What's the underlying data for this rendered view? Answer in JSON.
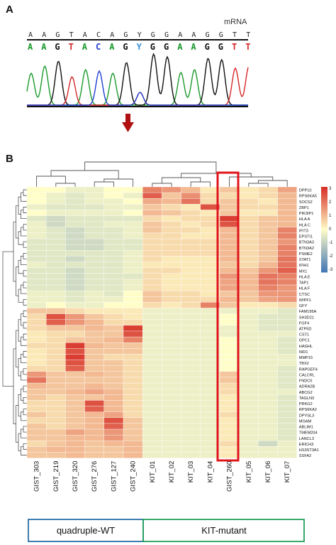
{
  "panelA": {
    "label": "A",
    "mrna_label": "mRNA",
    "sequence_top": [
      "A",
      "A",
      "G",
      "T",
      "A",
      "C",
      "A",
      "G",
      "Y",
      "G",
      "G",
      "A",
      "A",
      "G",
      "G",
      "T",
      "T"
    ],
    "sequence_calls": [
      "A",
      "A",
      "G",
      "T",
      "A",
      "C",
      "A",
      "G",
      "Y",
      "G",
      "G",
      "A",
      "A",
      "G",
      "G",
      "T",
      "T"
    ],
    "base_colors": {
      "A": "#1a9a2c",
      "G": "#111111",
      "T": "#d62728",
      "C": "#1f3fd1",
      "Y": "#3b8fd6"
    },
    "arrow_color": "#b01010",
    "mutation_index": 8
  },
  "panelB": {
    "label": "B",
    "samples": [
      "GIST_303",
      "GIST_219",
      "GIST_320",
      "GIST_276",
      "GIST_127",
      "GIST_240",
      "KIT_01",
      "KIT_02",
      "KIT_03",
      "KIT_04",
      "GIST_260",
      "KIT_05",
      "KIT_06",
      "KIT_07"
    ],
    "highlight_sample": "GIST_260",
    "highlight_color": "#e0141b",
    "genes": [
      "DPP10",
      "RPS6KA5",
      "SOCS2",
      "ZBP1",
      "PIK3IP1",
      "HLA A",
      "HLA C",
      "IFIT3",
      "EPSTI1",
      "BTN3A3",
      "BTN3A2",
      "PSME2",
      "STAT1",
      "IFIH1",
      "MX1",
      "HLA E",
      "TAP1",
      "HLA F",
      "CTSC",
      "WIPF1",
      "GFY",
      "FAM195A",
      "SH3D21",
      "FGF4",
      "ATP5D",
      "CST1",
      "GPC1",
      "HAGHL",
      "NID1",
      "MMP15",
      "TBX2",
      "RAPGEF4",
      "CALCRL",
      "FNDC5",
      "ADRA2B",
      "ABCG2",
      "TAGLN3",
      "PRKG2",
      "RPS6KA2",
      "DPYSL3",
      "MGAM",
      "ABLIM1",
      "TMEM204",
      "LANCL3",
      "ERICH3",
      "HS3ST3A1",
      "SSFA2"
    ],
    "scale_ticks": [
      "3",
      "2",
      "1",
      "0",
      "-1",
      "-2",
      "-3"
    ],
    "groups": [
      {
        "label": "quadruple-WT",
        "color": "#2a6fa8"
      },
      {
        "label": "KIT-mutant",
        "color": "#22a05a"
      }
    ]
  },
  "chart_data": {
    "type": "heatmap",
    "title": "",
    "x": [
      "GIST_303",
      "GIST_219",
      "GIST_320",
      "GIST_276",
      "GIST_127",
      "GIST_240",
      "KIT_01",
      "KIT_02",
      "KIT_03",
      "KIT_04",
      "GIST_260",
      "KIT_05",
      "KIT_06",
      "KIT_07"
    ],
    "y": [
      "DPP10",
      "RPS6KA5",
      "SOCS2",
      "ZBP1",
      "PIK3IP1",
      "HLA A",
      "HLA C",
      "IFIT3",
      "EPSTI1",
      "BTN3A3",
      "BTN3A2",
      "PSME2",
      "STAT1",
      "IFIH1",
      "MX1",
      "HLA E",
      "TAP1",
      "HLA F",
      "CTSC",
      "WIPF1",
      "GFY",
      "FAM195A",
      "SH3D21",
      "FGF4",
      "ATP5D",
      "CST1",
      "GPC1",
      "HAGHL",
      "NID1",
      "MMP15",
      "TBX2",
      "RAPGEF4",
      "CALCRL",
      "FNDC5",
      "ADRA2B",
      "ABCG2",
      "TAGLN3",
      "PRKG2",
      "RPS6KA2",
      "DPYSL3",
      "MGAM",
      "ABLIM1",
      "TMEM204",
      "LANCL3",
      "ERICH3",
      "HS3ST3A1",
      "SSFA2"
    ],
    "color_range": [
      -3,
      3
    ],
    "values": [
      [
        0,
        0,
        -0.3,
        -0.3,
        0,
        0,
        1.8,
        1.5,
        1,
        0.3,
        0.8,
        0.3,
        0.5,
        1.3
      ],
      [
        0,
        -0.3,
        -0.5,
        -0.3,
        0,
        -0.3,
        2.3,
        0.8,
        1.6,
        0.5,
        0.5,
        0.3,
        0.5,
        1
      ],
      [
        0,
        -0.3,
        -0.5,
        -0.3,
        -0.3,
        0,
        1.2,
        1,
        2,
        0.5,
        0.8,
        0.5,
        0.3,
        1
      ],
      [
        -0.3,
        -0.5,
        -0.5,
        -0.5,
        -0.3,
        -0.3,
        0.8,
        0.5,
        0.3,
        2.5,
        0.8,
        0.5,
        0.5,
        1
      ],
      [
        0,
        -0.3,
        -0.3,
        -0.3,
        -0.3,
        0,
        1,
        0.8,
        0.5,
        0.3,
        0.8,
        0.3,
        0.3,
        1
      ],
      [
        -0.5,
        -0.8,
        -0.5,
        -0.5,
        -0.5,
        -0.5,
        0.5,
        0.3,
        0.5,
        0.5,
        2.8,
        0.5,
        0.8,
        1
      ],
      [
        -0.3,
        -0.8,
        -0.5,
        -0.5,
        -0.3,
        -0.3,
        0.8,
        0.5,
        0.3,
        0.5,
        2.5,
        0.5,
        0.8,
        1
      ],
      [
        -0.3,
        -0.5,
        -0.8,
        -0.5,
        -0.5,
        -0.3,
        0.8,
        0.5,
        0.5,
        0.3,
        1,
        0.5,
        0.8,
        1.8
      ],
      [
        -0.3,
        -0.5,
        -0.8,
        -0.5,
        -0.5,
        -0.3,
        0.5,
        0.5,
        0.3,
        0.3,
        1,
        0.5,
        0.8,
        1.8
      ],
      [
        -0.5,
        -0.5,
        -0.8,
        -0.8,
        -0.5,
        -0.5,
        0.5,
        0.5,
        0.5,
        0.5,
        1,
        0.5,
        0.8,
        1.5
      ],
      [
        -0.5,
        -0.5,
        -0.8,
        -0.8,
        -0.5,
        -0.5,
        0.5,
        0.5,
        0.5,
        0.5,
        1,
        0.5,
        0.8,
        1.8
      ],
      [
        -0.5,
        -0.5,
        -0.5,
        -0.5,
        -0.5,
        -0.3,
        0.5,
        0.5,
        0.5,
        0.5,
        1,
        0.5,
        0.8,
        1.8
      ],
      [
        -0.5,
        -0.5,
        -0.8,
        -0.5,
        -0.5,
        -0.3,
        0.5,
        0.3,
        0.3,
        0.3,
        1,
        0.5,
        0.8,
        2
      ],
      [
        -0.3,
        -0.5,
        -0.5,
        -0.5,
        -0.5,
        -0.3,
        0.3,
        0.3,
        0.3,
        0.3,
        0.8,
        0.5,
        1,
        2
      ],
      [
        -0.5,
        -0.5,
        -0.8,
        -0.5,
        -0.5,
        -0.3,
        0.5,
        0.5,
        0.3,
        0.3,
        1,
        0.8,
        1.5,
        2.3
      ],
      [
        -0.5,
        -0.5,
        -0.8,
        -0.5,
        -0.5,
        -0.5,
        0.5,
        0.3,
        0.3,
        0.3,
        1.5,
        1,
        2,
        1.8
      ],
      [
        -0.5,
        -0.5,
        -0.8,
        -0.5,
        -0.5,
        -0.3,
        0.5,
        0.3,
        0.3,
        0.3,
        1.3,
        1,
        2,
        1.8
      ],
      [
        -0.5,
        -0.5,
        -0.8,
        -0.5,
        -0.5,
        -0.3,
        0.5,
        0.3,
        0.3,
        0.3,
        1.3,
        1,
        1.8,
        1.5
      ],
      [
        -0.3,
        -0.3,
        -0.5,
        -0.3,
        -0.5,
        0,
        0.8,
        0.5,
        0.5,
        0.3,
        0.8,
        0.8,
        1.5,
        1.5
      ],
      [
        -0.3,
        -0.3,
        -0.5,
        -0.3,
        -0.3,
        0,
        0.8,
        0.5,
        0.5,
        0.5,
        1,
        0.8,
        1.3,
        1.5
      ],
      [
        -0.3,
        0,
        -0.3,
        -0.3,
        0,
        0,
        0.5,
        0.3,
        0.5,
        1.8,
        0.8,
        0.3,
        0.3,
        0.5
      ],
      [
        0.8,
        0.8,
        0.5,
        0.3,
        0.3,
        0.3,
        -0.3,
        -0.3,
        -0.3,
        -0.3,
        -0.3,
        -0.3,
        -0.3,
        -0.5
      ],
      [
        0.5,
        2.5,
        1.5,
        0.8,
        0.5,
        0.3,
        -0.3,
        -0.3,
        -0.3,
        -0.3,
        0,
        -0.3,
        -0.5,
        -0.5
      ],
      [
        0.5,
        2.3,
        1.5,
        1,
        0.5,
        0.5,
        -0.3,
        -0.3,
        -0.3,
        -0.3,
        0,
        -0.3,
        -0.5,
        -0.5
      ],
      [
        0.5,
        0.8,
        0.8,
        1,
        0.8,
        2.8,
        -0.3,
        -0.3,
        -0.3,
        -0.3,
        -0.3,
        -0.3,
        -0.5,
        -0.5
      ],
      [
        0.3,
        0.5,
        0.5,
        0.8,
        0.8,
        2.5,
        -0.3,
        -0.3,
        -0.3,
        -0.3,
        -0.3,
        -0.3,
        -0.3,
        -0.3
      ],
      [
        0.3,
        0.5,
        0.8,
        0.8,
        1,
        1.8,
        -0.3,
        -0.3,
        -0.3,
        -0.3,
        0,
        -0.3,
        -0.3,
        -0.5
      ],
      [
        0.5,
        0.5,
        2.8,
        1,
        0.8,
        0.8,
        -0.3,
        -0.3,
        -0.3,
        -0.3,
        0,
        -0.3,
        -0.3,
        -0.5
      ],
      [
        0.3,
        0.5,
        2.5,
        0.8,
        0.8,
        0.8,
        -0.3,
        -0.3,
        -0.3,
        -0.3,
        0,
        -0.3,
        -0.3,
        -0.5
      ],
      [
        0.3,
        0.5,
        2.8,
        0.8,
        0.5,
        0.5,
        -0.3,
        -0.3,
        -0.3,
        -0.3,
        0,
        -0.3,
        -0.3,
        -0.3
      ],
      [
        0.3,
        0.5,
        2.5,
        0.8,
        0.8,
        0.5,
        -0.3,
        -0.3,
        -0.3,
        -0.3,
        0,
        -0.3,
        -0.3,
        -0.3
      ],
      [
        0.5,
        0.5,
        2.3,
        0.8,
        0.8,
        0.5,
        -0.3,
        -0.3,
        -0.3,
        -0.3,
        0,
        -0.3,
        -0.3,
        -0.5
      ],
      [
        1.5,
        0.8,
        0.8,
        1,
        0.8,
        0.5,
        -0.3,
        -0.3,
        -0.3,
        -0.3,
        0.8,
        -0.3,
        -0.3,
        -0.5
      ],
      [
        2,
        0.8,
        0.8,
        0.8,
        0.8,
        0.5,
        -0.3,
        -0.3,
        -0.3,
        -0.3,
        0.8,
        -0.3,
        -0.3,
        -0.5
      ],
      [
        1,
        0.8,
        0.8,
        1,
        0.8,
        0.5,
        -0.3,
        -0.3,
        -0.3,
        -0.3,
        0.5,
        -0.3,
        -0.3,
        -0.5
      ],
      [
        0.8,
        0.8,
        1,
        1.3,
        1,
        0.5,
        -0.3,
        -0.3,
        -0.3,
        -0.3,
        0.5,
        -0.3,
        -0.3,
        -0.3
      ],
      [
        0.8,
        0.5,
        0.8,
        0.8,
        1,
        0.5,
        -0.3,
        -0.3,
        -0.3,
        -0.3,
        0.3,
        -0.3,
        -0.3,
        -0.5
      ],
      [
        0.5,
        0.5,
        0.8,
        2.5,
        1,
        0.5,
        -0.3,
        -0.3,
        -0.3,
        -0.3,
        0.3,
        -0.3,
        -0.3,
        -0.5
      ],
      [
        0.5,
        0.5,
        0.8,
        2.3,
        1,
        0.5,
        -0.3,
        -0.3,
        -0.3,
        -0.3,
        0.3,
        -0.3,
        -0.3,
        -0.5
      ],
      [
        0.8,
        0.5,
        0.8,
        1,
        1.3,
        0.5,
        -0.3,
        -0.3,
        -0.3,
        -0.3,
        0.5,
        -0.3,
        -0.3,
        -0.5
      ],
      [
        0.5,
        0.5,
        0.8,
        1,
        2.5,
        0.8,
        -0.3,
        -0.3,
        -0.3,
        -0.3,
        0.3,
        -0.3,
        -0.3,
        -0.5
      ],
      [
        0.8,
        0.5,
        0.8,
        1,
        2.3,
        0.8,
        -0.3,
        -0.3,
        -0.3,
        -0.3,
        0.3,
        -0.3,
        -0.3,
        -0.5
      ],
      [
        0.8,
        0.8,
        1.3,
        1,
        1.5,
        0.8,
        -0.3,
        -0.3,
        -0.3,
        -0.3,
        0.3,
        -0.3,
        -0.3,
        -0.5
      ],
      [
        0.8,
        0.8,
        1,
        1,
        1.5,
        0.8,
        -0.3,
        -0.3,
        -0.3,
        -0.3,
        0.3,
        -0.3,
        -0.3,
        -0.5
      ],
      [
        0.5,
        0.8,
        1,
        0.8,
        1,
        1,
        -0.3,
        -0.3,
        -0.3,
        -0.3,
        0.5,
        -0.3,
        -0.8,
        -0.3
      ],
      [
        0.8,
        1,
        1,
        0.8,
        0.8,
        1,
        -0.3,
        -0.3,
        -0.3,
        -0.3,
        0.3,
        -0.3,
        -0.3,
        -0.3
      ],
      [
        0.8,
        0.8,
        1,
        0.8,
        0.8,
        1,
        -0.3,
        -0.3,
        -0.3,
        -0.3,
        0.3,
        -0.3,
        -0.3,
        -0.3
      ]
    ]
  }
}
